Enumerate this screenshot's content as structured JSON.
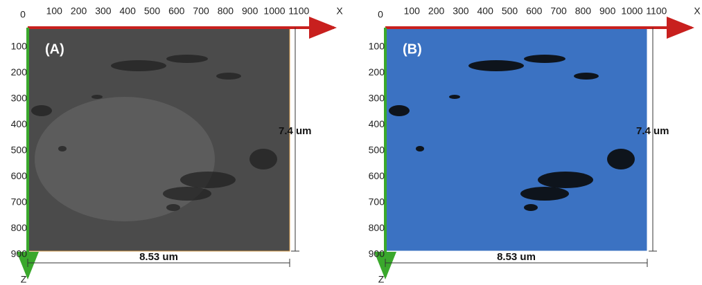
{
  "panels": [
    {
      "label": "(A)",
      "x_ticks": [
        0,
        100,
        200,
        300,
        400,
        500,
        600,
        700,
        800,
        900,
        1000,
        1100
      ],
      "z_ticks": [
        100,
        200,
        300,
        400,
        500,
        600,
        700,
        800,
        900
      ],
      "x_axis": "X",
      "z_axis": "Z",
      "width": "8.53 um",
      "height": "7.4 um"
    },
    {
      "label": "(B)",
      "x_ticks": [
        0,
        100,
        200,
        300,
        400,
        500,
        600,
        700,
        800,
        900,
        1000,
        1100
      ],
      "z_ticks": [
        100,
        200,
        300,
        400,
        500,
        600,
        700,
        800,
        900
      ],
      "x_axis": "X",
      "z_axis": "Z",
      "width": "8.53 um",
      "height": "7.4 um"
    }
  ]
}
